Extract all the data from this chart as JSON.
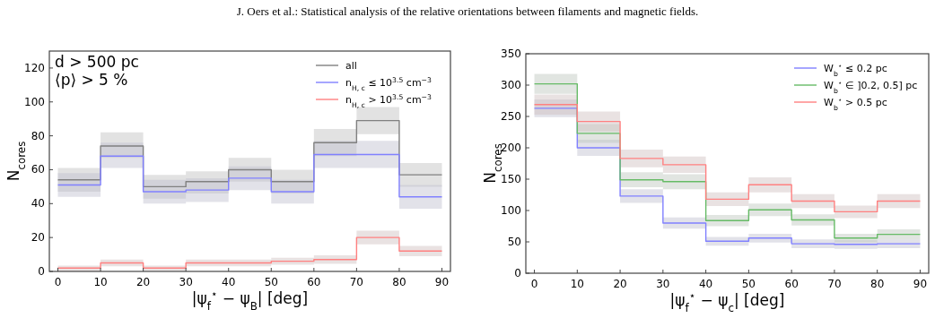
{
  "chart_data": [
    {
      "type": "step",
      "xlabel": "|ψ$_{f}$$^{⋆}$ − ψ$_{B}$| [deg]",
      "ylabel": "N$_{cores}$",
      "annotations": [
        "J. Oers et al.: Statistical analysis of the relative orientations between filaments and magnetic fields.",
        "d > 500 pc",
        "⟨p⟩ > 5 %"
      ],
      "x": [
        0,
        10,
        20,
        30,
        40,
        50,
        60,
        70,
        80,
        90
      ],
      "xlim": [
        -2,
        92
      ],
      "ylim": [
        0,
        130
      ],
      "xticks": [
        0,
        10,
        20,
        30,
        40,
        50,
        60,
        70,
        80,
        90
      ],
      "yticks": [
        0,
        20,
        40,
        60,
        80,
        100,
        120
      ],
      "legend": "top right",
      "series": [
        {
          "name": "all",
          "color": "#808080",
          "values": [
            54,
            74,
            50,
            53,
            60,
            53,
            76,
            89,
            57,
            57
          ],
          "lower": [
            47,
            67,
            43,
            46,
            53,
            46,
            68,
            81,
            50,
            50
          ],
          "upper": [
            61,
            82,
            57,
            59,
            67,
            60,
            84,
            97,
            64,
            64
          ]
        },
        {
          "name": "n$_{H, c}$ ≤ 10$^{3.5}$ cm$^{−3}$",
          "color": "#8080ff",
          "values": [
            51,
            68,
            47,
            48,
            55,
            47,
            69,
            69,
            44,
            44
          ],
          "lower": [
            44,
            61,
            40,
            41,
            48,
            40,
            61,
            61,
            37,
            37
          ],
          "upper": [
            58,
            76,
            54,
            55,
            62,
            54,
            77,
            77,
            51,
            51
          ]
        },
        {
          "name": "n$_{H, c}$ > 10$^{3.5}$ cm$^{−3}$",
          "color": "#ff8080",
          "values": [
            2,
            5,
            2,
            5,
            5,
            6,
            7,
            20,
            12,
            12
          ],
          "lower": [
            0,
            3,
            0.5,
            3,
            3,
            4,
            4.5,
            16,
            9,
            9
          ],
          "upper": [
            3.5,
            7,
            3.5,
            7,
            7,
            8,
            9.5,
            24,
            15,
            15
          ]
        }
      ]
    },
    {
      "type": "step",
      "xlabel": "|ψ$_{f}$$^{⋆}$ − ψ$_{c}$| [deg]",
      "ylabel": "N$_{cores}$",
      "x": [
        0,
        10,
        20,
        30,
        40,
        50,
        60,
        70,
        80,
        90
      ],
      "xlim": [
        -2,
        92
      ],
      "ylim": [
        0,
        350
      ],
      "xticks": [
        0,
        10,
        20,
        30,
        40,
        50,
        60,
        70,
        80,
        90
      ],
      "yticks": [
        0,
        50,
        100,
        150,
        200,
        250,
        300,
        350
      ],
      "legend": "top right",
      "series": [
        {
          "name": "W$_{b}$$^{⋆}$ ≤ 0.2 pc",
          "color": "#8080ff",
          "values": [
            263,
            200,
            123,
            80,
            51,
            56,
            47,
            46,
            47,
            47
          ],
          "lower": [
            249,
            187,
            112,
            71,
            44,
            49,
            40,
            39,
            40,
            40
          ],
          "upper": [
            277,
            213,
            134,
            89,
            58,
            63,
            54,
            53,
            54,
            54
          ]
        },
        {
          "name": "W$_{b}$$^{⋆}$ ∈ ]0.2, 0.5] pc",
          "color": "#66bb66",
          "values": [
            302,
            223,
            149,
            146,
            84,
            101,
            85,
            56,
            62,
            62
          ],
          "lower": [
            286,
            208,
            137,
            134,
            75,
            91,
            76,
            49,
            54,
            54
          ],
          "upper": [
            318,
            238,
            161,
            158,
            93,
            111,
            94,
            63,
            70,
            70
          ]
        },
        {
          "name": "W$_{b}$$^{⋆}$ > 0.5 pc",
          "color": "#ff8080",
          "values": [
            269,
            242,
            183,
            173,
            118,
            141,
            115,
            98,
            115,
            115
          ],
          "lower": [
            253,
            226,
            169,
            160,
            107,
            129,
            104,
            88,
            104,
            104
          ],
          "upper": [
            285,
            258,
            197,
            186,
            129,
            153,
            126,
            108,
            126,
            126
          ]
        }
      ]
    }
  ]
}
